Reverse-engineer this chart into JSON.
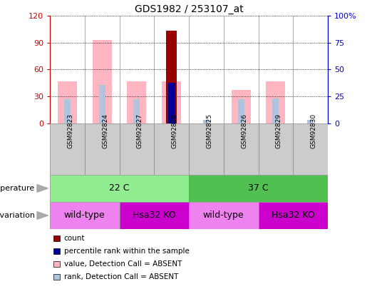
{
  "title": "GDS1982 / 253107_at",
  "samples": [
    "GSM92823",
    "GSM92824",
    "GSM92827",
    "GSM92828",
    "GSM92825",
    "GSM92826",
    "GSM92829",
    "GSM92830"
  ],
  "count_values": [
    null,
    null,
    null,
    103,
    null,
    null,
    null,
    null
  ],
  "rank_values": [
    null,
    null,
    null,
    45,
    null,
    null,
    null,
    null
  ],
  "value_absent": [
    47,
    93,
    47,
    47,
    null,
    37,
    47,
    null
  ],
  "rank_absent": [
    27,
    43,
    27,
    27,
    4,
    27,
    28,
    4
  ],
  "ylim_left": [
    0,
    120
  ],
  "ylim_right": [
    0,
    100
  ],
  "yticks_left": [
    0,
    30,
    60,
    90,
    120
  ],
  "yticks_right": [
    0,
    25,
    50,
    75,
    100
  ],
  "ytick_labels_left": [
    "0",
    "30",
    "60",
    "90",
    "120"
  ],
  "ytick_labels_right": [
    "0",
    "25",
    "50",
    "75",
    "100%"
  ],
  "temperature_groups": [
    {
      "label": "22 C",
      "start": 0,
      "end": 4,
      "color": "#90EE90"
    },
    {
      "label": "37 C",
      "start": 4,
      "end": 8,
      "color": "#50C050"
    }
  ],
  "genotype_groups": [
    {
      "label": "wild-type",
      "start": 0,
      "end": 2,
      "color": "#EE82EE"
    },
    {
      "label": "Hsa32 KO",
      "start": 2,
      "end": 4,
      "color": "#CC00CC"
    },
    {
      "label": "wild-type",
      "start": 4,
      "end": 6,
      "color": "#EE82EE"
    },
    {
      "label": "Hsa32 KO",
      "start": 6,
      "end": 8,
      "color": "#CC00CC"
    }
  ],
  "count_color": "#990000",
  "rank_color": "#000099",
  "value_absent_color": "#FFB6C1",
  "rank_absent_color": "#B0C4DE",
  "label_color_left": "#CC0000",
  "label_color_right": "#0000CC",
  "separator_color": "#888888",
  "xlabel_bg": "#CCCCCC"
}
